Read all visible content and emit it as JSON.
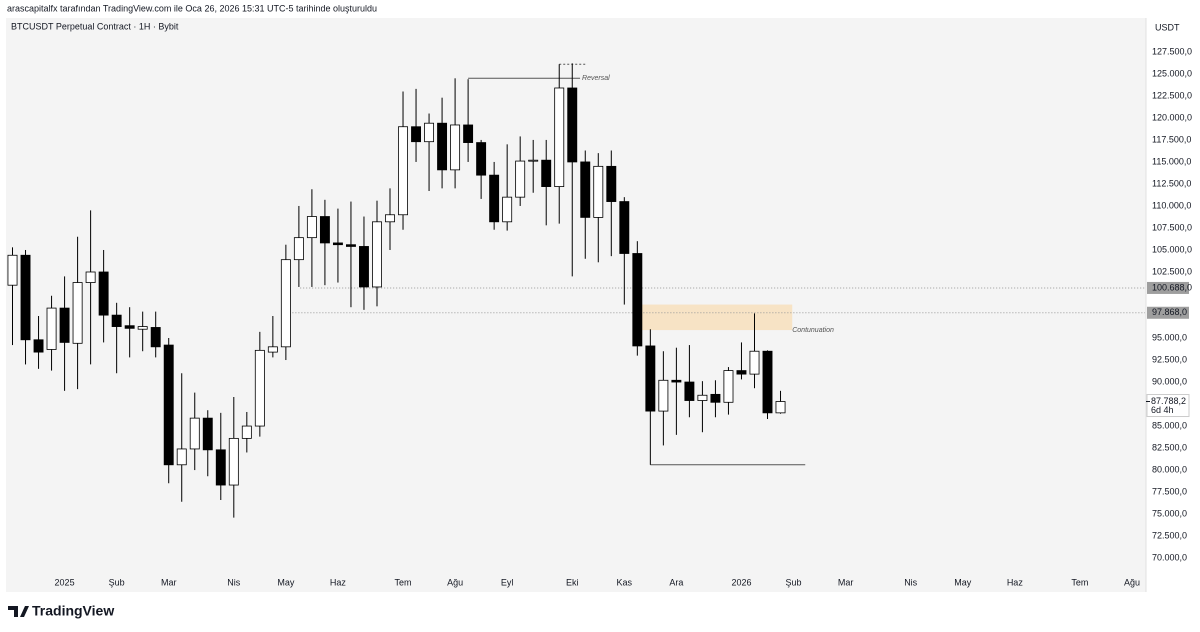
{
  "header": {
    "credit": "arascapitalfx tarafından TradingView.com ile Oca 26, 2026 15:31 UTC-5 tarihinde oluşturuldu"
  },
  "footer": {
    "logo": "TradingView"
  },
  "chart_data": {
    "type": "candlestick",
    "title": "BTCUSDT Perpetual Contract · 1H · Bybit",
    "currency": "USDT",
    "up_color": "#ffffff",
    "down_color": "#000000",
    "wick_color": "#000000",
    "grid": false,
    "x": [
      0,
      1,
      2,
      3,
      4,
      5,
      6,
      7,
      8,
      9,
      10,
      11,
      12,
      13,
      14,
      15,
      16,
      17,
      18,
      19,
      20,
      21,
      22,
      23,
      24,
      25,
      26,
      27,
      28,
      29,
      30,
      31,
      32,
      33,
      34,
      35,
      36,
      37,
      38,
      39,
      40,
      41,
      42,
      43,
      44,
      45,
      46,
      47,
      48,
      49,
      50,
      51,
      52,
      53,
      54,
      55,
      56,
      57,
      58,
      59
    ],
    "open": [
      101000,
      104400,
      94800,
      93700,
      98400,
      94400,
      101300,
      102500,
      97600,
      96400,
      96000,
      96200,
      94200,
      80600,
      82400,
      85900,
      82300,
      78300,
      83600,
      85000,
      93400,
      94000,
      103900,
      106400,
      108800,
      105800,
      105600,
      105400,
      100800,
      108200,
      109000,
      119000,
      117300,
      119400,
      114100,
      119200,
      117200,
      113500,
      108200,
      111000,
      115100,
      115200,
      112200,
      123400,
      115000,
      108700,
      114500,
      110500,
      104600,
      94100,
      86700,
      90200,
      90000,
      87900,
      88600,
      87700,
      91300,
      90900,
      93500,
      86500
    ],
    "high": [
      105300,
      105000,
      97500,
      99800,
      102000,
      106500,
      109500,
      105000,
      99000,
      98500,
      98000,
      98000,
      95000,
      91000,
      88800,
      86800,
      86500,
      88300,
      86600,
      95700,
      97500,
      105600,
      110000,
      111900,
      110700,
      109700,
      110500,
      108800,
      110600,
      112000,
      123000,
      123300,
      120500,
      122300,
      124500,
      124400,
      117500,
      115000,
      117000,
      117900,
      117500,
      117500,
      126100,
      126200,
      116300,
      116000,
      116300,
      111000,
      106000,
      96000,
      93500,
      93900,
      94200,
      90100,
      90200,
      91700,
      94500,
      97800,
      93600,
      89000
    ],
    "low": [
      94200,
      92000,
      91500,
      91300,
      89000,
      89200,
      92000,
      94500,
      91000,
      92800,
      93500,
      92800,
      78500,
      76400,
      80000,
      79300,
      76600,
      74600,
      82000,
      83800,
      92800,
      92500,
      100800,
      100800,
      101000,
      101300,
      98500,
      98200,
      98600,
      105000,
      107300,
      115000,
      111700,
      112000,
      112000,
      115000,
      110800,
      107300,
      107200,
      110000,
      111500,
      107800,
      108000,
      102000,
      104000,
      103600,
      104300,
      98800,
      93000,
      80600,
      82800,
      84000,
      86000,
      84300,
      86000,
      86300,
      90300,
      89300,
      85800,
      86400
    ],
    "close": [
      104400,
      94800,
      93400,
      98400,
      94500,
      101300,
      102500,
      97600,
      96300,
      96100,
      96300,
      94000,
      80600,
      82400,
      85900,
      82300,
      78300,
      83600,
      85000,
      93600,
      94000,
      103900,
      106400,
      108800,
      105800,
      105600,
      105400,
      100800,
      108200,
      109000,
      119000,
      117300,
      119400,
      114100,
      119200,
      117200,
      113500,
      108200,
      111000,
      115100,
      115200,
      112200,
      123400,
      115000,
      108700,
      114500,
      110500,
      104600,
      94100,
      86700,
      90200,
      90000,
      87900,
      88500,
      87700,
      91300,
      90900,
      93500,
      86500,
      87788.2
    ],
    "xlim": [
      -0.5,
      87
    ],
    "xticks": [
      {
        "value": 4,
        "label": "2025"
      },
      {
        "value": 8,
        "label": "Şub"
      },
      {
        "value": 12,
        "label": "Mar"
      },
      {
        "value": 17,
        "label": "Nis"
      },
      {
        "value": 21,
        "label": "May"
      },
      {
        "value": 25,
        "label": "Haz"
      },
      {
        "value": 30,
        "label": "Tem"
      },
      {
        "value": 34,
        "label": "Ağu"
      },
      {
        "value": 38,
        "label": "Eyl"
      },
      {
        "value": 43,
        "label": "Eki"
      },
      {
        "value": 47,
        "label": "Kas"
      },
      {
        "value": 51,
        "label": "Ara"
      },
      {
        "value": 56,
        "label": "2026"
      },
      {
        "value": 60,
        "label": "Şub"
      },
      {
        "value": 64,
        "label": "Mar"
      },
      {
        "value": 69,
        "label": "Nis"
      },
      {
        "value": 73,
        "label": "May"
      },
      {
        "value": 77,
        "label": "Haz"
      },
      {
        "value": 82,
        "label": "Tem"
      },
      {
        "value": 86,
        "label": "Ağu"
      }
    ],
    "ylim": [
      68650,
      131350
    ],
    "yticks": [
      {
        "value": 70000,
        "label": "70.000,0"
      },
      {
        "value": 72500,
        "label": "72.500,0"
      },
      {
        "value": 75000,
        "label": "75.000,0"
      },
      {
        "value": 77500,
        "label": "77.500,0"
      },
      {
        "value": 80000,
        "label": "80.000,0"
      },
      {
        "value": 82500,
        "label": "82.500,0"
      },
      {
        "value": 85000,
        "label": "85.000,0"
      },
      {
        "value": 90000,
        "label": "90.000,0"
      },
      {
        "value": 92500,
        "label": "92.500,0"
      },
      {
        "value": 95000,
        "label": "95.000,0"
      },
      {
        "value": 102500,
        "label": "102.500,0"
      },
      {
        "value": 105000,
        "label": "105.000,0"
      },
      {
        "value": 107500,
        "label": "107.500,0"
      },
      {
        "value": 110000,
        "label": "110.000,0"
      },
      {
        "value": 112500,
        "label": "112.500,0"
      },
      {
        "value": 115000,
        "label": "115.000,0"
      },
      {
        "value": 117500,
        "label": "117.500,0"
      },
      {
        "value": 120000,
        "label": "120.000,0"
      },
      {
        "value": 122500,
        "label": "122.500,0"
      },
      {
        "value": 125000,
        "label": "125.000,0"
      },
      {
        "value": 127500,
        "label": "127.500,0"
      }
    ],
    "levels": [
      {
        "value": 100688,
        "label": "100.688,0",
        "x_from": 22.1
      },
      {
        "value": 97868,
        "label": "97.868,0",
        "x_from": 21.5
      }
    ],
    "last_price": {
      "value": 87788.2,
      "label": "87.788,2",
      "countdown": "6d 4h"
    },
    "annotations": {
      "reversal": {
        "label": "Reversal",
        "value": 124500,
        "x_from": 35,
        "x_to": 43.6
      },
      "peak_line": {
        "value": 126100,
        "x_from": 42,
        "x_to": 44
      },
      "zone": {
        "label": "Contunuation",
        "low": 95900,
        "high": 98800,
        "x_from": 48.3,
        "x_to": 59.9
      },
      "support": {
        "value": 80600,
        "x_from": 49,
        "x_to": 60.9
      }
    }
  }
}
